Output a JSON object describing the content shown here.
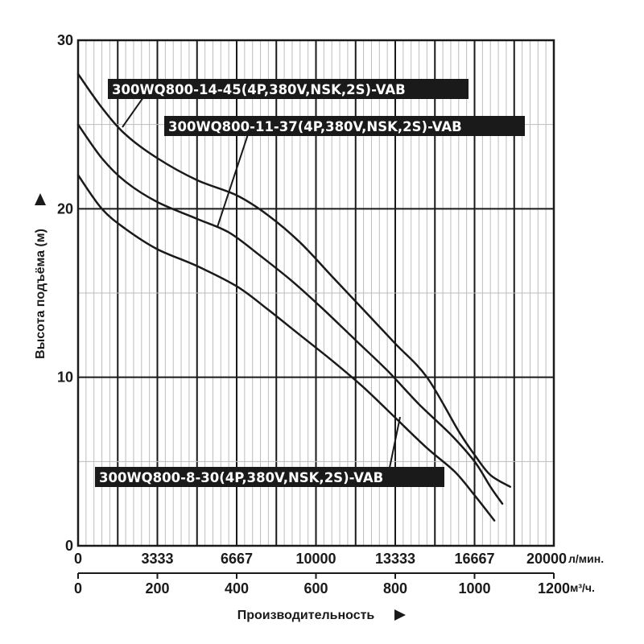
{
  "chart_data": {
    "type": "line",
    "ylabel": "Высота подъёма (м)",
    "xlabel": "Производительность",
    "ylim": [
      0,
      30
    ],
    "yticks": [
      "0",
      "10",
      "20",
      "30"
    ],
    "x_top": {
      "unit": "л/мин.",
      "ticks": [
        "0",
        "3333",
        "6667",
        "10000",
        "13333",
        "16667",
        "20000"
      ]
    },
    "x_bottom": {
      "unit": "м³/ч.",
      "ticks": [
        "0",
        "200",
        "400",
        "600",
        "800",
        "1000",
        "1200"
      ]
    },
    "xlim": [
      0,
      1200
    ],
    "grid": true,
    "series": [
      {
        "name": "300WQ800-14-45(4P,380V,NSK,2S)-VAB",
        "x": [
          0,
          60,
          120,
          200,
          300,
          400,
          480,
          560,
          640,
          720,
          800,
          880,
          960,
          1000,
          1040,
          1090
        ],
        "y": [
          28,
          26,
          24.4,
          23,
          21.7,
          20.8,
          19.6,
          18,
          16,
          14,
          12,
          10,
          6.8,
          5.4,
          4.2,
          3.5
        ]
      },
      {
        "name": "300WQ800-11-37(4P,380V,NSK,2S)-VAB",
        "x": [
          0,
          60,
          120,
          200,
          300,
          380,
          460,
          540,
          620,
          700,
          780,
          860,
          940,
          1000,
          1040,
          1070
        ],
        "y": [
          25,
          23,
          21.6,
          20.4,
          19.4,
          18.6,
          17.2,
          15.7,
          14,
          12.2,
          10.4,
          8.4,
          6.6,
          5,
          3.5,
          2.5
        ]
      },
      {
        "name": "300WQ800-8-30(4P,380V,NSK,2S)-VAB",
        "x": [
          0,
          60,
          120,
          200,
          300,
          400,
          480,
          560,
          640,
          720,
          800,
          880,
          950,
          1000,
          1050
        ],
        "y": [
          22,
          20,
          18.8,
          17.6,
          16.6,
          15.4,
          14,
          12.5,
          11,
          9.4,
          7.6,
          5.8,
          4.4,
          3,
          1.5
        ]
      }
    ],
    "labels": [
      "300WQ800-14-45(4P,380V,NSK,2S)-VAB",
      "300WQ800-11-37(4P,380V,NSK,2S)-VAB",
      "300WQ800-8-30(4P,380V,NSK,2S)-VAB"
    ],
    "colors": {
      "line": "#1a1a1a",
      "label_bg": "#1a1a1a",
      "label_text": "#ffffff",
      "grid_minor": "#bdbdbd"
    }
  }
}
